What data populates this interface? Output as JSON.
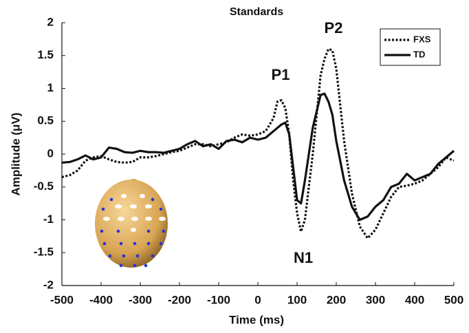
{
  "chart_data": {
    "type": "line",
    "title": "Standards",
    "x_label": "Time (ms)",
    "y_label": "Amplitude (μV)",
    "x": [
      -500,
      -480,
      -460,
      -440,
      -420,
      -400,
      -380,
      -360,
      -340,
      -320,
      -300,
      -280,
      -260,
      -240,
      -220,
      -200,
      -180,
      -160,
      -140,
      -120,
      -100,
      -80,
      -60,
      -40,
      -20,
      0,
      20,
      40,
      50,
      60,
      70,
      80,
      90,
      100,
      110,
      120,
      140,
      160,
      170,
      180,
      190,
      200,
      220,
      240,
      260,
      280,
      300,
      320,
      340,
      360,
      380,
      400,
      420,
      440,
      460,
      480,
      500
    ],
    "series": [
      {
        "name": "FXS",
        "color": "#111111",
        "dash": "dotted",
        "values": [
          -0.35,
          -0.32,
          -0.25,
          -0.1,
          -0.05,
          -0.03,
          -0.08,
          -0.12,
          -0.13,
          -0.12,
          -0.05,
          -0.05,
          -0.03,
          0,
          0.03,
          0.05,
          0.1,
          0.15,
          0.15,
          0.12,
          0.15,
          0.18,
          0.25,
          0.3,
          0.28,
          0.3,
          0.35,
          0.55,
          0.8,
          0.82,
          0.7,
          0.3,
          -0.4,
          -0.9,
          -1.18,
          -1.0,
          0,
          1.2,
          1.45,
          1.6,
          1.58,
          1.3,
          0.2,
          -0.6,
          -1.1,
          -1.28,
          -1.15,
          -0.9,
          -0.65,
          -0.5,
          -0.48,
          -0.45,
          -0.4,
          -0.3,
          -0.2,
          -0.05,
          -0.1
        ]
      },
      {
        "name": "TD",
        "color": "#111111",
        "dash": "solid",
        "values": [
          -0.13,
          -0.12,
          -0.08,
          -0.02,
          -0.08,
          -0.05,
          0.1,
          0.08,
          0.03,
          0.02,
          0.05,
          0.03,
          0.03,
          0.02,
          0.05,
          0.08,
          0.15,
          0.2,
          0.12,
          0.15,
          0.08,
          0.2,
          0.22,
          0.18,
          0.25,
          0.22,
          0.25,
          0.35,
          0.4,
          0.45,
          0.48,
          0.3,
          -0.2,
          -0.7,
          -0.75,
          -0.4,
          0.4,
          0.9,
          0.92,
          0.8,
          0.6,
          0.2,
          -0.4,
          -0.8,
          -1.0,
          -0.95,
          -0.8,
          -0.7,
          -0.5,
          -0.45,
          -0.3,
          -0.4,
          -0.35,
          -0.3,
          -0.15,
          -0.05,
          0.05
        ]
      }
    ],
    "xlim": [
      -500,
      500
    ],
    "ylim": [
      -2,
      2
    ],
    "xticks": [
      -500,
      -400,
      -300,
      -200,
      -100,
      0,
      100,
      200,
      300,
      400,
      500
    ],
    "yticks": [
      -2,
      -1.5,
      -1,
      -0.5,
      0,
      0.5,
      1,
      1.5,
      2
    ],
    "legend": "upper right",
    "annotations": [
      "P1",
      "P2",
      "N1"
    ]
  }
}
